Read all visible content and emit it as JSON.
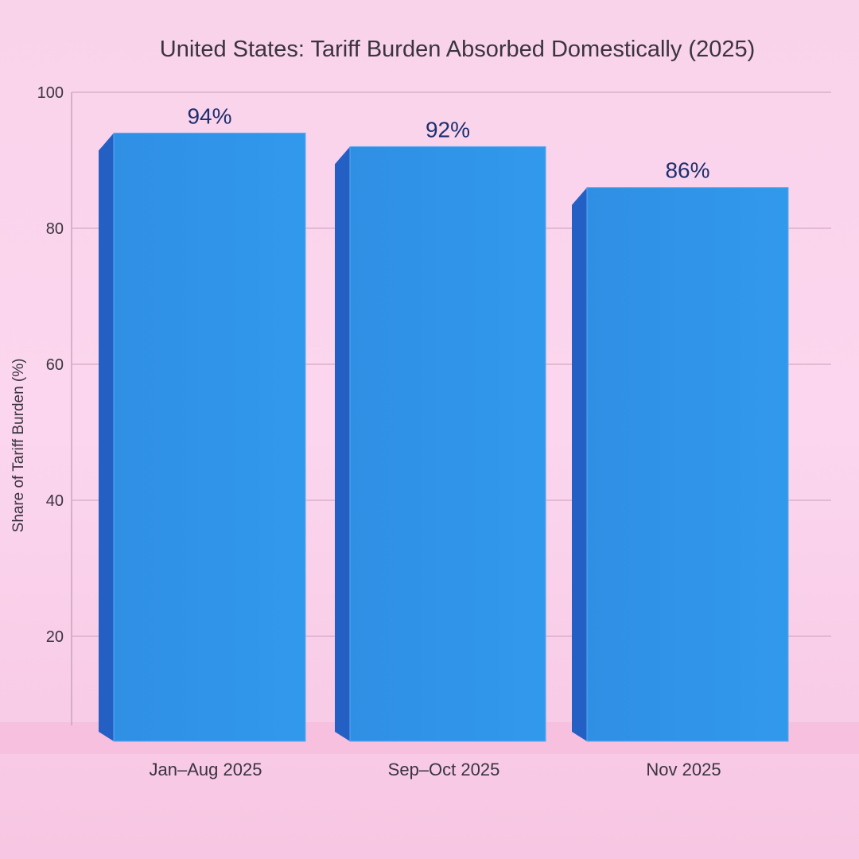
{
  "chart_data": {
    "type": "bar",
    "title": "United States: Tariff Burden Absorbed Domestically (2025)",
    "xlabel": "",
    "ylabel": "Share of Tariff Burden (%)",
    "ylim": [
      0,
      100
    ],
    "yticks": [
      20,
      40,
      60,
      80,
      100
    ],
    "grid": true,
    "categories": [
      "Jan–Aug 2025",
      "Sep–Oct 2025",
      "Nov 2025"
    ],
    "values": [
      94,
      92,
      86
    ],
    "data_labels": [
      "94%",
      "92%",
      "86%"
    ],
    "bar_color": "#2a8fe6",
    "label_color": "#1d2f6e"
  }
}
